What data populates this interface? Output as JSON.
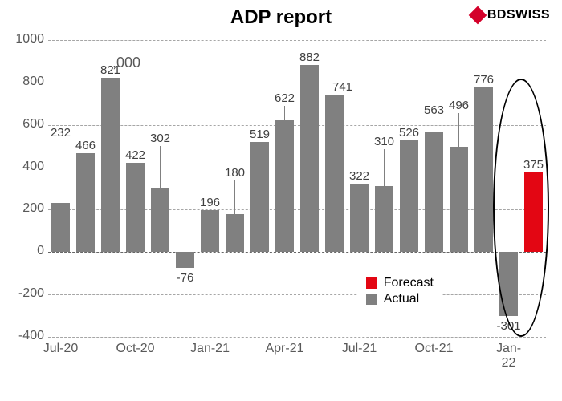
{
  "title": "ADP report",
  "logo": {
    "brand": "BDSWISS"
  },
  "unit_label": ",000",
  "chart": {
    "type": "bar",
    "ylim": [
      -400,
      1000
    ],
    "ytick_step": 200,
    "yticks": [
      -400,
      -200,
      0,
      200,
      400,
      600,
      800,
      1000
    ],
    "background_color": "#ffffff",
    "grid_color": "#a6a6a6",
    "text_color": "#595959",
    "bar_width": 0.72,
    "title_fontsize": 24,
    "label_fontsize": 16,
    "x_labels": [
      "Jul-20",
      "Oct-20",
      "Jan-21",
      "Apr-21",
      "Jul-21",
      "Oct-21",
      "Jan-22"
    ],
    "x_label_every": 3,
    "series": [
      {
        "name": "Actual",
        "color": "#808080",
        "values": [
          232,
          466,
          821,
          422,
          302,
          -76,
          196,
          180,
          519,
          622,
          882,
          741,
          322,
          310,
          526,
          563,
          496,
          776,
          -301,
          null
        ]
      },
      {
        "name": "Forecast",
        "color": "#e30613",
        "values": [
          null,
          null,
          null,
          null,
          null,
          null,
          null,
          null,
          null,
          null,
          null,
          null,
          null,
          null,
          null,
          null,
          null,
          null,
          null,
          375
        ]
      }
    ],
    "highlight": {
      "start_index": 18,
      "end_index": 19
    }
  },
  "legend": {
    "items": [
      {
        "label": "Forecast",
        "color": "#e30613"
      },
      {
        "label": "Actual",
        "color": "#808080"
      }
    ]
  }
}
